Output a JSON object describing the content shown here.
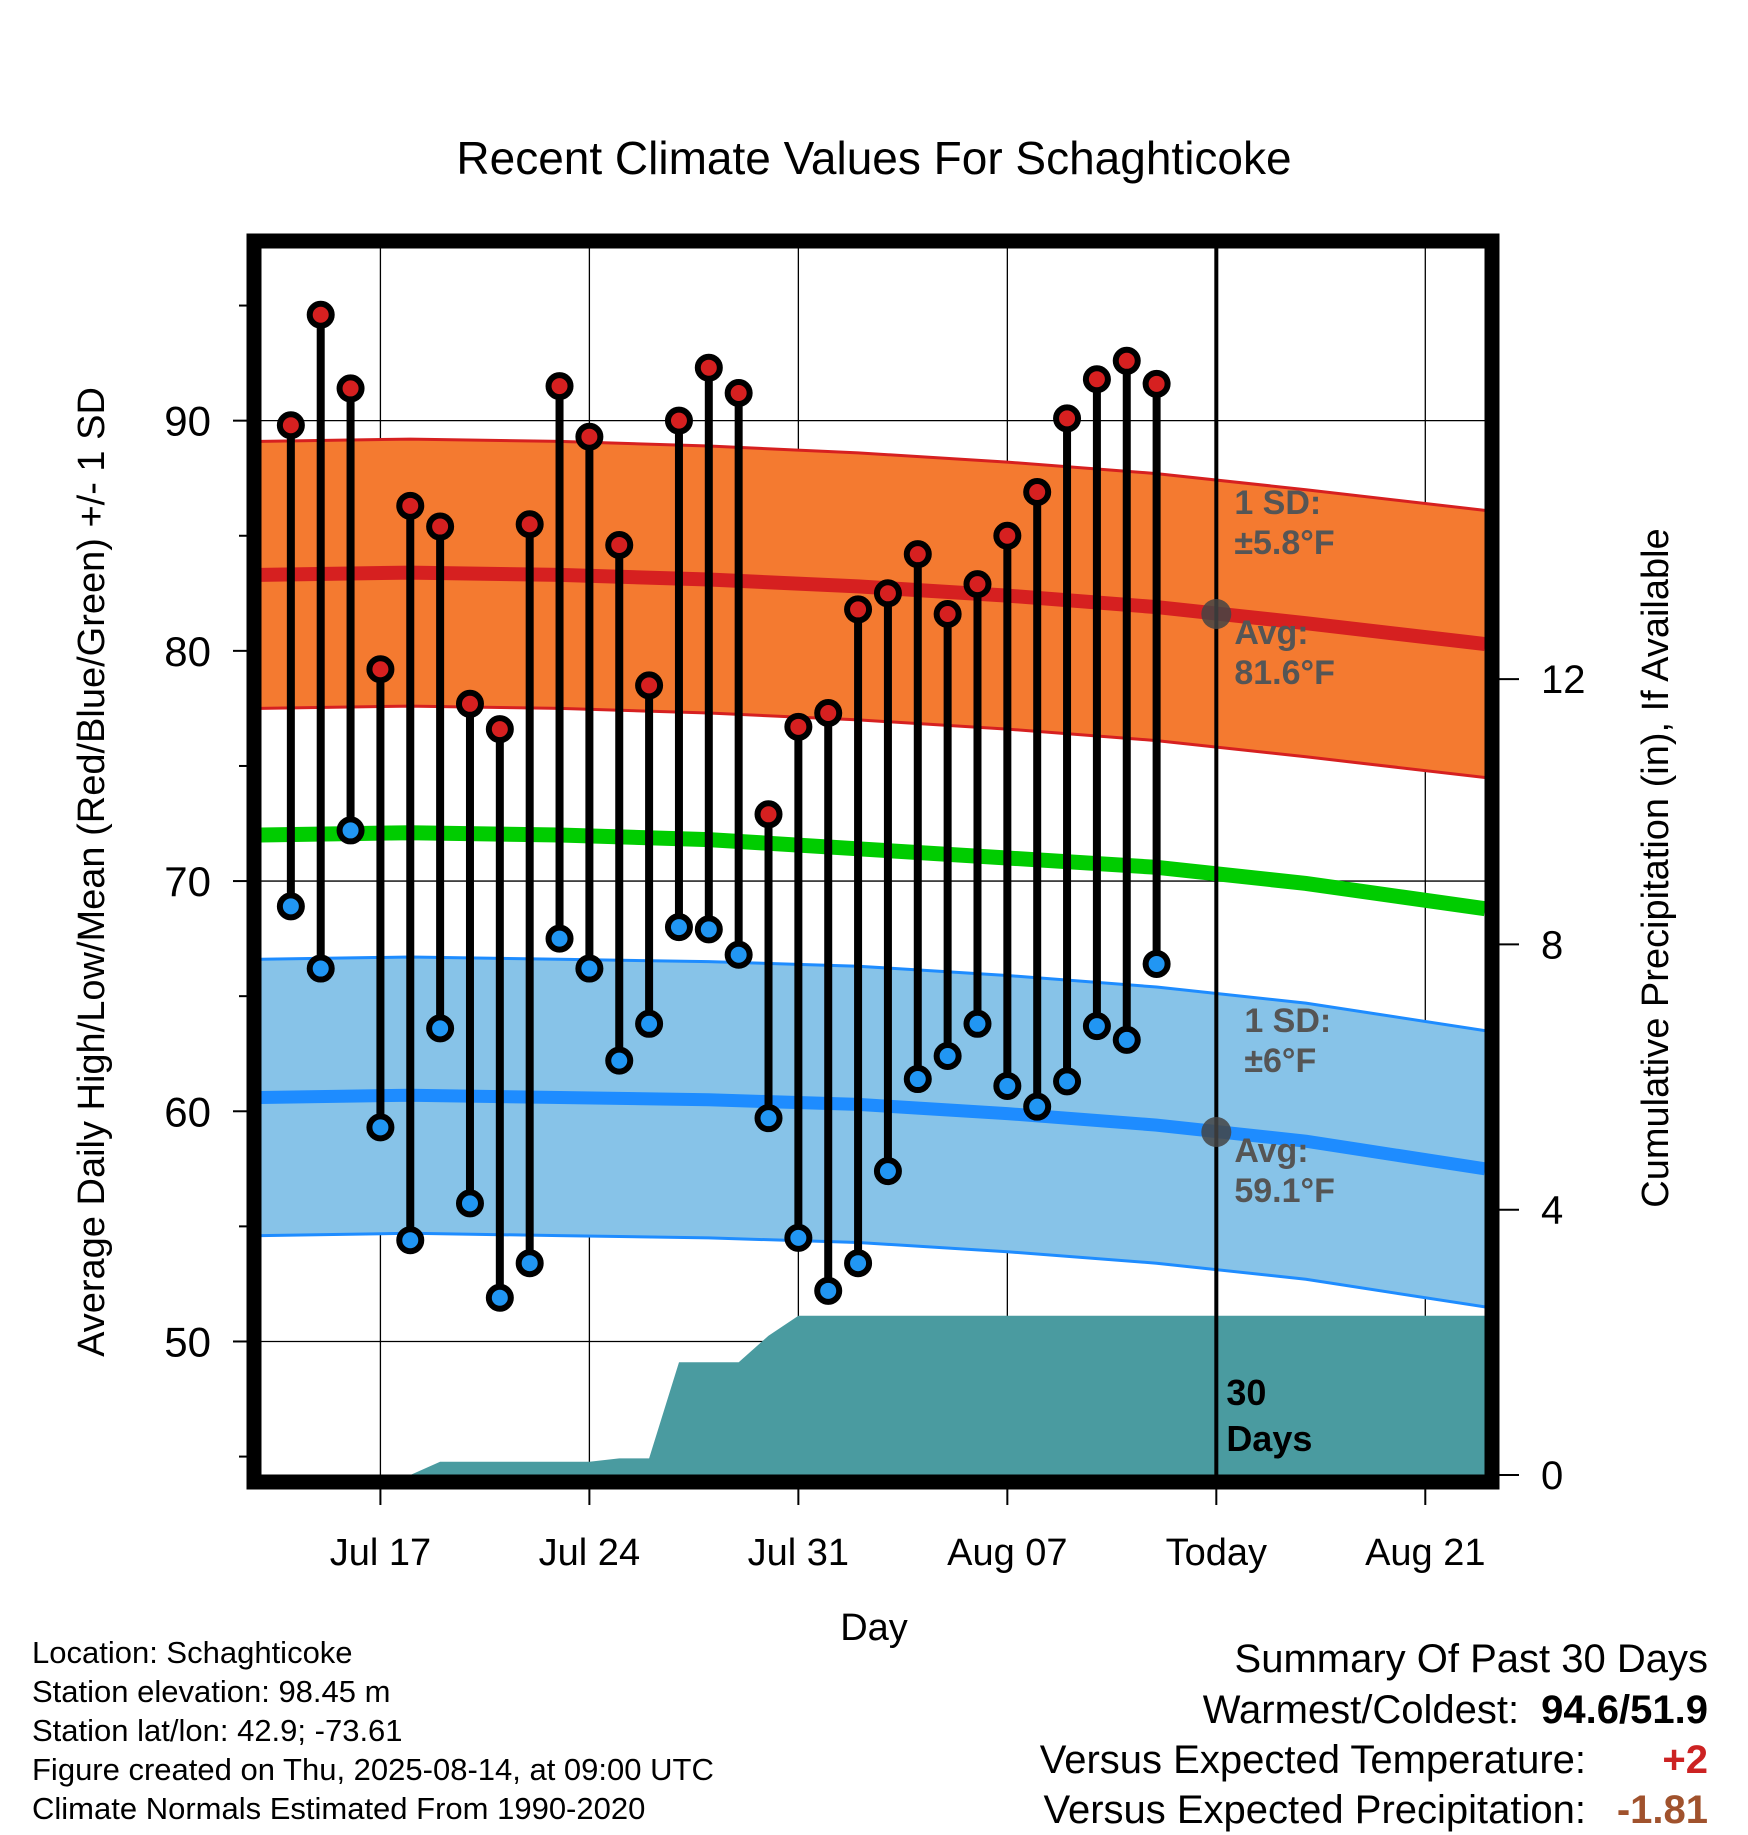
{
  "chart_data": {
    "type": "line",
    "title": "Recent Climate Values For Schaghticoke",
    "xlabel": "Day",
    "ylabel": "Average Daily High/Low/Mean (Red/Blue/Green) +/- 1 SD",
    "y2label": "Cumulative Precipitation (in), If Available",
    "ylim": [
      44.2,
      97.5
    ],
    "y2lim": [
      0,
      18.5
    ],
    "x_range": [
      "2025-07-13",
      "2025-08-23"
    ],
    "x_tick_labels": [
      {
        "date": "2025-07-17",
        "label": "Jul 17"
      },
      {
        "date": "2025-07-24",
        "label": "Jul 24"
      },
      {
        "date": "2025-07-31",
        "label": "Jul 31"
      },
      {
        "date": "2025-08-07",
        "label": "Aug 07"
      },
      {
        "date": "2025-08-14",
        "label": "Today"
      },
      {
        "date": "2025-08-21",
        "label": "Aug 21"
      }
    ],
    "y_ticks": [
      50,
      60,
      70,
      80,
      90
    ],
    "y2_ticks": [
      0,
      4,
      8,
      12
    ],
    "grid": true,
    "today": "2025-08-14",
    "observed": {
      "dates": [
        "2025-07-14",
        "2025-07-15",
        "2025-07-16",
        "2025-07-17",
        "2025-07-18",
        "2025-07-19",
        "2025-07-20",
        "2025-07-21",
        "2025-07-22",
        "2025-07-23",
        "2025-07-24",
        "2025-07-25",
        "2025-07-26",
        "2025-07-27",
        "2025-07-28",
        "2025-07-29",
        "2025-07-30",
        "2025-07-31",
        "2025-08-01",
        "2025-08-02",
        "2025-08-03",
        "2025-08-04",
        "2025-08-05",
        "2025-08-06",
        "2025-08-07",
        "2025-08-08",
        "2025-08-09",
        "2025-08-10",
        "2025-08-11",
        "2025-08-12",
        "2025-08-13"
      ],
      "high": [
        89.8,
        94.6,
        91.4,
        79.2,
        86.3,
        85.4,
        77.7,
        76.6,
        85.5,
        91.5,
        89.3,
        84.6,
        78.5,
        90.0,
        92.3,
        91.2,
        72.9,
        76.7,
        77.3,
        81.8,
        82.5,
        84.2,
        81.6,
        82.9,
        85.0,
        86.9,
        90.1,
        91.8,
        92.6,
        91.6,
        null
      ],
      "low": [
        68.9,
        66.2,
        72.2,
        59.3,
        54.4,
        63.6,
        56.0,
        51.9,
        53.4,
        67.5,
        66.2,
        62.2,
        63.8,
        68.0,
        67.9,
        66.8,
        59.7,
        54.5,
        52.2,
        53.4,
        57.4,
        61.4,
        62.4,
        63.8,
        61.1,
        60.2,
        61.3,
        63.7,
        63.1,
        66.4,
        null
      ]
    },
    "normals": {
      "dates": [
        "2025-07-13",
        "2025-07-18",
        "2025-07-23",
        "2025-07-28",
        "2025-08-02",
        "2025-08-07",
        "2025-08-12",
        "2025-08-17",
        "2025-08-23"
      ],
      "mean_high": [
        83.3,
        83.4,
        83.3,
        83.1,
        82.8,
        82.4,
        81.9,
        81.2,
        80.3
      ],
      "high_sd_upper": [
        89.1,
        89.2,
        89.1,
        88.9,
        88.6,
        88.2,
        87.7,
        87.0,
        86.1
      ],
      "high_sd_lower": [
        77.5,
        77.6,
        77.5,
        77.3,
        77.0,
        76.6,
        76.1,
        75.4,
        74.5
      ],
      "mean": [
        72.0,
        72.1,
        72.0,
        71.8,
        71.4,
        71.0,
        70.6,
        69.9,
        68.8
      ],
      "mean_low": [
        60.6,
        60.7,
        60.6,
        60.5,
        60.3,
        59.9,
        59.4,
        58.7,
        57.5
      ],
      "low_sd_upper": [
        66.6,
        66.7,
        66.6,
        66.5,
        66.3,
        65.9,
        65.4,
        64.7,
        63.5
      ],
      "low_sd_lower": [
        54.6,
        54.7,
        54.6,
        54.5,
        54.3,
        53.9,
        53.4,
        52.7,
        51.5
      ]
    },
    "cumulative_precip": {
      "dates": [
        "2025-07-13",
        "2025-07-18",
        "2025-07-19",
        "2025-07-24",
        "2025-07-25",
        "2025-07-26",
        "2025-07-27",
        "2025-07-29",
        "2025-07-30",
        "2025-07-31",
        "2025-08-23"
      ],
      "values": [
        0.0,
        0.0,
        0.2,
        0.2,
        0.25,
        0.25,
        1.7,
        1.7,
        2.1,
        2.4,
        2.4
      ]
    },
    "annotations": {
      "high_sd": "1 SD:",
      "high_sd_value": "±5.8°F",
      "high_avg": "Avg:",
      "high_avg_value": "81.6°F",
      "today_high_avg": 81.6,
      "low_sd": "1 SD:",
      "low_sd_value": "±6°F",
      "low_avg": "Avg:",
      "low_avg_value": "59.1°F",
      "today_low_avg": 59.1,
      "days_number": "30",
      "days_word": "Days"
    },
    "colors": {
      "high_band": "#f47a30",
      "high_line": "#d62020",
      "mean_line": "#00cc00",
      "low_band": "#87c3e8",
      "low_line": "#1e8cff",
      "precip": "#4a9ba0",
      "annotation": "#555555",
      "high_dot": "#d62020",
      "low_dot": "#2196f3"
    }
  },
  "info": {
    "location": "Location: Schaghticoke",
    "elevation": "Station elevation: 98.45 m",
    "latlon": "Station lat/lon: 42.9; -73.61",
    "created": "Figure created on Thu, 2025-08-14, at 09:00 UTC",
    "normals": "Climate Normals Estimated From 1990-2020"
  },
  "summary": {
    "title": "Summary Of Past 30 Days",
    "warmest_label": "Warmest/Coldest:",
    "warmest_value": "94.6",
    "coldest_value": "51.9",
    "temp_label": "Versus Expected Temperature:",
    "temp_value": "+2",
    "precip_label": "Versus Expected Precipitation:",
    "precip_value": "-1.81",
    "temp_color": "#cc2222",
    "precip_color": "#a0522d"
  }
}
